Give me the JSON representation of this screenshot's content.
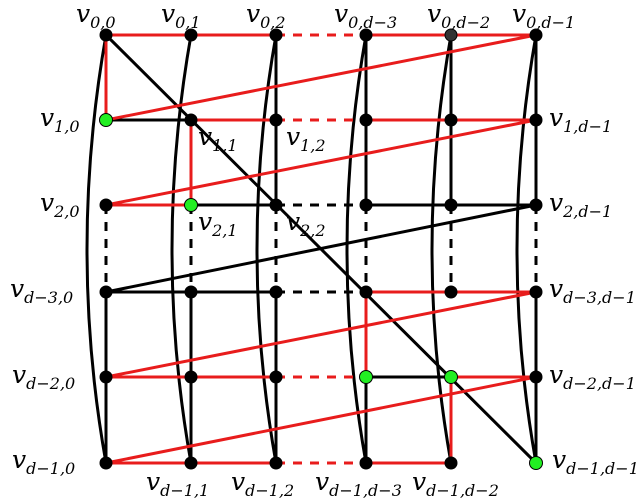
{
  "colors": {
    "red_edge": "#e81c1c",
    "black_edge": "#000000",
    "black_node": "#000000",
    "green_node": "#22ee22",
    "dark_node": "#333333"
  },
  "columns": [
    "0",
    "1",
    "2",
    "d-3",
    "d-2",
    "d-1"
  ],
  "rows": [
    "0",
    "1",
    "2",
    "d-3",
    "d-2",
    "d-1"
  ],
  "vertex_prefix": "v",
  "labels": {
    "top": [
      {
        "base": "v",
        "sub": "0,0"
      },
      {
        "base": "v",
        "sub": "0,1"
      },
      {
        "base": "v",
        "sub": "0,2"
      },
      {
        "base": "v",
        "sub": "0,d−3"
      },
      {
        "base": "v",
        "sub": "0,d−2"
      },
      {
        "base": "v",
        "sub": "0,d−1"
      }
    ],
    "left": [
      {
        "base": "v",
        "sub": "1,0"
      },
      {
        "base": "v",
        "sub": "2,0"
      },
      {
        "base": "v",
        "sub": "d−3,0"
      },
      {
        "base": "v",
        "sub": "d−2,0"
      },
      {
        "base": "v",
        "sub": "d−1,0"
      }
    ],
    "right": [
      {
        "base": "v",
        "sub": "1,d−1"
      },
      {
        "base": "v",
        "sub": "2,d−1"
      },
      {
        "base": "v",
        "sub": "d−3,d−1"
      },
      {
        "base": "v",
        "sub": "d−2,d−1"
      },
      {
        "base": "v",
        "sub": "d−1,d−1"
      }
    ],
    "bottom": [
      {
        "base": "v",
        "sub": "d−1,1"
      },
      {
        "base": "v",
        "sub": "d−1,2"
      },
      {
        "base": "v",
        "sub": "d−1,d−3"
      },
      {
        "base": "v",
        "sub": "d−1,d−2"
      }
    ],
    "interior": [
      {
        "base": "v",
        "sub": "1,1"
      },
      {
        "base": "v",
        "sub": "1,2"
      },
      {
        "base": "v",
        "sub": "2,1"
      },
      {
        "base": "v",
        "sub": "2,2"
      }
    ]
  },
  "green_vertices": [
    "1,0",
    "2,1",
    "d-2,d-3",
    "d-2,d-2",
    "d-1,d-1"
  ],
  "dark_vertices": [
    "0,d-2"
  ]
}
